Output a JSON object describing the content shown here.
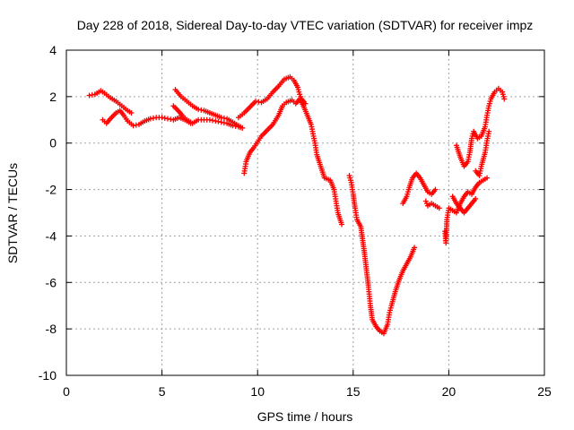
{
  "chart_data": {
    "type": "scatter",
    "title": "Day 228 of 2018, Sidereal Day-to-day VTEC variation (SDTVAR) for receiver impz",
    "xlabel": "GPS time / hours",
    "ylabel": "SDTVAR / TECUs",
    "xlim": [
      0,
      25
    ],
    "ylim": [
      -10,
      4
    ],
    "xticks": [
      "0",
      "5",
      "10",
      "15",
      "20",
      "25"
    ],
    "yticks": [
      "4",
      "2",
      "0",
      "-2",
      "-4",
      "-6",
      "-8",
      "-10"
    ],
    "grid": true,
    "marker": "plus",
    "color": "#ff0000",
    "segments": [
      [
        [
          1.2,
          2.05
        ],
        [
          1.5,
          2.1
        ],
        [
          1.8,
          2.25
        ],
        [
          2.0,
          2.15
        ],
        [
          2.3,
          1.95
        ],
        [
          2.6,
          1.8
        ],
        [
          2.9,
          1.6
        ],
        [
          3.2,
          1.4
        ],
        [
          3.4,
          1.3
        ]
      ],
      [
        [
          1.9,
          1.0
        ],
        [
          2.1,
          0.85
        ],
        [
          2.3,
          1.05
        ],
        [
          2.6,
          1.3
        ],
        [
          2.8,
          1.4
        ],
        [
          3.0,
          1.2
        ],
        [
          3.2,
          0.95
        ],
        [
          3.5,
          0.75
        ],
        [
          3.8,
          0.8
        ],
        [
          4.1,
          0.95
        ],
        [
          4.4,
          1.05
        ],
        [
          4.7,
          1.1
        ],
        [
          5.0,
          1.1
        ],
        [
          5.3,
          1.05
        ],
        [
          5.6,
          1.0
        ],
        [
          5.9,
          1.1
        ],
        [
          6.2,
          1.0
        ],
        [
          6.5,
          0.85
        ]
      ],
      [
        [
          5.7,
          2.3
        ],
        [
          6.0,
          2.0
        ],
        [
          6.3,
          1.8
        ],
        [
          6.6,
          1.6
        ],
        [
          6.9,
          1.45
        ],
        [
          7.2,
          1.4
        ],
        [
          7.5,
          1.3
        ],
        [
          7.8,
          1.2
        ],
        [
          8.1,
          1.1
        ],
        [
          8.4,
          1.05
        ],
        [
          8.7,
          0.9
        ],
        [
          9.0,
          0.75
        ],
        [
          9.2,
          0.65
        ]
      ],
      [
        [
          5.6,
          1.6
        ],
        [
          5.9,
          1.35
        ],
        [
          6.1,
          1.15
        ],
        [
          6.3,
          1.0
        ],
        [
          6.6,
          0.85
        ],
        [
          6.9,
          1.0
        ],
        [
          7.2,
          1.0
        ],
        [
          7.5,
          1.0
        ],
        [
          7.8,
          0.95
        ],
        [
          8.1,
          0.9
        ],
        [
          8.4,
          0.85
        ],
        [
          8.7,
          0.75
        ],
        [
          9.0,
          0.7
        ],
        [
          9.2,
          0.65
        ]
      ],
      [
        [
          9.0,
          1.1
        ],
        [
          9.3,
          1.3
        ],
        [
          9.6,
          1.55
        ],
        [
          9.9,
          1.8
        ],
        [
          10.2,
          1.75
        ],
        [
          10.5,
          1.9
        ],
        [
          10.8,
          2.2
        ],
        [
          11.1,
          2.45
        ],
        [
          11.4,
          2.75
        ],
        [
          11.7,
          2.85
        ],
        [
          11.9,
          2.7
        ],
        [
          12.1,
          2.4
        ],
        [
          12.2,
          2.1
        ],
        [
          12.3,
          1.9
        ],
        [
          12.5,
          1.7
        ]
      ],
      [
        [
          9.3,
          -1.3
        ],
        [
          9.4,
          -0.8
        ],
        [
          9.6,
          -0.4
        ],
        [
          9.8,
          -0.2
        ],
        [
          10.0,
          0.05
        ],
        [
          10.2,
          0.3
        ],
        [
          10.5,
          0.55
        ],
        [
          10.8,
          0.8
        ],
        [
          11.1,
          1.2
        ],
        [
          11.3,
          1.6
        ],
        [
          11.5,
          1.75
        ],
        [
          11.8,
          1.85
        ],
        [
          12.0,
          1.7
        ],
        [
          12.2,
          1.9
        ],
        [
          12.4,
          1.6
        ],
        [
          12.6,
          1.2
        ],
        [
          12.8,
          0.8
        ],
        [
          12.9,
          0.4
        ],
        [
          13.0,
          0.0
        ],
        [
          13.1,
          -0.5
        ],
        [
          13.3,
          -1.0
        ],
        [
          13.5,
          -1.5
        ],
        [
          13.8,
          -1.6
        ],
        [
          14.0,
          -2.0
        ],
        [
          14.1,
          -2.5
        ],
        [
          14.2,
          -3.0
        ],
        [
          14.4,
          -3.5
        ]
      ],
      [
        [
          14.8,
          -1.4
        ],
        [
          14.9,
          -1.7
        ],
        [
          15.0,
          -2.2
        ],
        [
          15.1,
          -2.8
        ],
        [
          15.2,
          -3.3
        ],
        [
          15.4,
          -3.6
        ],
        [
          15.5,
          -4.2
        ],
        [
          15.6,
          -4.8
        ],
        [
          15.7,
          -5.5
        ],
        [
          15.8,
          -6.2
        ],
        [
          15.85,
          -6.6
        ],
        [
          15.9,
          -7.0
        ],
        [
          16.0,
          -7.6
        ],
        [
          16.2,
          -7.9
        ],
        [
          16.4,
          -8.1
        ],
        [
          16.6,
          -8.2
        ],
        [
          16.8,
          -7.8
        ],
        [
          16.9,
          -7.3
        ],
        [
          17.0,
          -7.0
        ],
        [
          17.2,
          -6.4
        ],
        [
          17.4,
          -5.9
        ],
        [
          17.6,
          -5.5
        ],
        [
          17.8,
          -5.2
        ],
        [
          18.0,
          -4.9
        ],
        [
          18.2,
          -4.5
        ]
      ],
      [
        [
          17.6,
          -2.6
        ],
        [
          17.8,
          -2.3
        ],
        [
          17.9,
          -2.0
        ],
        [
          18.1,
          -1.5
        ],
        [
          18.3,
          -1.3
        ],
        [
          18.5,
          -1.5
        ],
        [
          18.7,
          -1.8
        ],
        [
          18.9,
          -2.1
        ],
        [
          19.1,
          -2.2
        ],
        [
          19.3,
          -2.0
        ]
      ],
      [
        [
          18.8,
          -2.5
        ],
        [
          18.9,
          -2.7
        ],
        [
          19.1,
          -2.6
        ],
        [
          19.3,
          -2.7
        ],
        [
          19.5,
          -2.8
        ]
      ],
      [
        [
          19.8,
          -3.8
        ],
        [
          19.85,
          -4.3
        ],
        [
          19.9,
          -3.3
        ],
        [
          20.0,
          -2.8
        ],
        [
          20.2,
          -2.9
        ],
        [
          20.4,
          -3.0
        ],
        [
          20.6,
          -2.6
        ],
        [
          20.8,
          -2.3
        ],
        [
          21.0,
          -2.1
        ],
        [
          21.2,
          -2.2
        ],
        [
          21.4,
          -1.9
        ],
        [
          21.6,
          -1.7
        ],
        [
          21.8,
          -1.6
        ],
        [
          22.0,
          -1.5
        ]
      ],
      [
        [
          20.2,
          -2.3
        ],
        [
          20.4,
          -2.6
        ],
        [
          20.6,
          -2.8
        ],
        [
          20.8,
          -3.0
        ],
        [
          21.0,
          -2.8
        ],
        [
          21.2,
          -2.6
        ],
        [
          21.4,
          -2.4
        ]
      ],
      [
        [
          20.4,
          -0.1
        ],
        [
          20.6,
          -0.6
        ],
        [
          20.8,
          -1.0
        ],
        [
          21.0,
          -0.8
        ],
        [
          21.1,
          -0.4
        ],
        [
          21.2,
          0.2
        ],
        [
          21.3,
          0.5
        ],
        [
          21.5,
          0.2
        ],
        [
          21.7,
          0.3
        ],
        [
          21.9,
          0.7
        ],
        [
          22.0,
          1.2
        ],
        [
          22.1,
          1.6
        ],
        [
          22.2,
          1.9
        ],
        [
          22.4,
          2.2
        ],
        [
          22.6,
          2.35
        ],
        [
          22.8,
          2.2
        ],
        [
          22.9,
          1.9
        ]
      ],
      [
        [
          21.4,
          -1.2
        ],
        [
          21.6,
          -1.4
        ],
        [
          21.7,
          -1.0
        ],
        [
          21.9,
          -0.4
        ],
        [
          22.0,
          0.1
        ],
        [
          22.1,
          0.5
        ]
      ]
    ]
  }
}
